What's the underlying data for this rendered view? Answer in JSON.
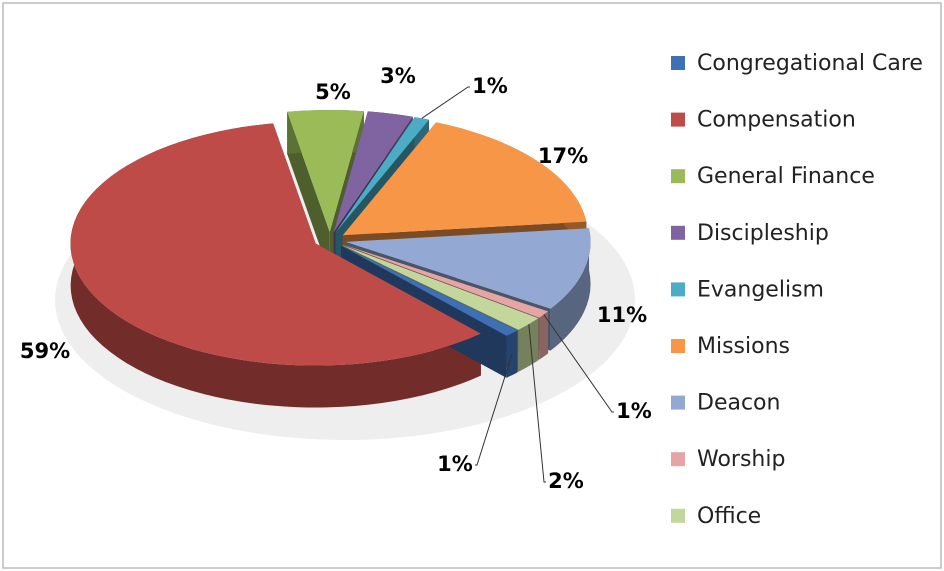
{
  "chart_data": {
    "type": "pie",
    "categories": [
      "Congregational Care",
      "Compensation",
      "General Finance",
      "Discipleship",
      "Evangelism",
      "Missions",
      "Deacon",
      "Worship",
      "Office"
    ],
    "values": [
      1,
      59,
      5,
      3,
      1,
      17,
      11,
      1,
      2
    ],
    "value_labels": [
      "1%",
      "59%",
      "5%",
      "3%",
      "1%",
      "17%",
      "11%",
      "1%",
      "2%"
    ],
    "colors": [
      "#3f6fb5",
      "#be4b48",
      "#9bbb59",
      "#8064a2",
      "#4bacc6",
      "#f79646",
      "#93a9d4",
      "#e6a5a5",
      "#c3d69b"
    ],
    "legend": "right"
  }
}
